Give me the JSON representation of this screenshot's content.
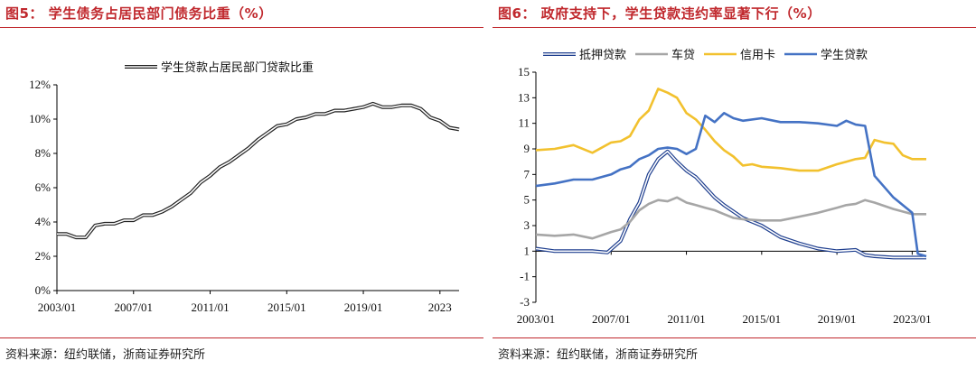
{
  "left": {
    "title": "图5： 学生债务占居民部门债务比重（%）",
    "source": "资料来源：纽约联储，浙商证券研究所"
  },
  "right": {
    "title": "图6： 政府支持下，学生贷款违约率显著下行（%）",
    "source": "资料来源：纽约联储，浙商证券研究所"
  },
  "chart_data": [
    {
      "type": "line",
      "title": "",
      "xlabel": "",
      "ylabel": "",
      "x_tick_labels": [
        "2003/01",
        "2007/01",
        "2011/01",
        "2015/01",
        "2019/01",
        "2023"
      ],
      "x_range": [
        2003.0,
        2024.0
      ],
      "ylim": [
        0,
        12
      ],
      "y_tick_labels": [
        "0%",
        "2%",
        "4%",
        "6%",
        "8%",
        "10%",
        "12%"
      ],
      "y_ticks": [
        0,
        2,
        4,
        6,
        8,
        10,
        12
      ],
      "legend_position": "top-center",
      "grid": false,
      "series": [
        {
          "name": "学生贷款占居民部门贷款比重",
          "color": "#222222",
          "style": "double",
          "x": [
            2003.0,
            2003.5,
            2004.0,
            2004.5,
            2005.0,
            2005.5,
            2006.0,
            2006.5,
            2007.0,
            2007.5,
            2008.0,
            2008.5,
            2009.0,
            2009.5,
            2010.0,
            2010.5,
            2011.0,
            2011.5,
            2012.0,
            2012.5,
            2013.0,
            2013.5,
            2014.0,
            2014.5,
            2015.0,
            2015.5,
            2016.0,
            2016.5,
            2017.0,
            2017.5,
            2018.0,
            2018.5,
            2019.0,
            2019.5,
            2020.0,
            2020.5,
            2021.0,
            2021.5,
            2022.0,
            2022.5,
            2023.0,
            2023.5,
            2024.0
          ],
          "y": [
            3.3,
            3.3,
            3.1,
            3.1,
            3.8,
            3.9,
            3.9,
            4.1,
            4.1,
            4.4,
            4.4,
            4.6,
            4.9,
            5.3,
            5.7,
            6.3,
            6.7,
            7.2,
            7.5,
            7.9,
            8.3,
            8.8,
            9.2,
            9.6,
            9.7,
            10.0,
            10.1,
            10.3,
            10.3,
            10.5,
            10.5,
            10.6,
            10.7,
            10.9,
            10.7,
            10.7,
            10.8,
            10.8,
            10.6,
            10.1,
            9.9,
            9.5,
            9.4
          ]
        }
      ]
    },
    {
      "type": "line",
      "title": "",
      "xlabel": "",
      "ylabel": "",
      "x_tick_labels": [
        "2003/01",
        "2007/01",
        "2011/01",
        "2015/01",
        "2019/01",
        "2023/01"
      ],
      "x_range": [
        2003.0,
        2023.75
      ],
      "ylim": [
        -3,
        15
      ],
      "y_ticks": [
        -3,
        -1,
        1,
        3,
        5,
        7,
        9,
        11,
        13,
        15
      ],
      "y_tick_labels": [
        "-3",
        "-1",
        "1",
        "3",
        "5",
        "7",
        "9",
        "11",
        "13",
        "15"
      ],
      "legend_position": "top",
      "grid": false,
      "series": [
        {
          "name": "抵押贷款",
          "color": "#1f3f8f",
          "style": "double",
          "x": [
            2003.0,
            2004.0,
            2005.0,
            2006.0,
            2006.8,
            2007.5,
            2008.0,
            2008.5,
            2009.0,
            2009.5,
            2010.0,
            2010.5,
            2011.0,
            2011.5,
            2012.0,
            2012.5,
            2013.0,
            2014.0,
            2015.0,
            2016.0,
            2017.0,
            2018.0,
            2019.0,
            2020.0,
            2020.5,
            2021.0,
            2022.0,
            2023.0,
            2023.75
          ],
          "y": [
            1.2,
            1.0,
            1.0,
            1.0,
            0.9,
            1.8,
            3.5,
            4.8,
            7.0,
            8.2,
            8.8,
            8.0,
            7.3,
            6.8,
            6.0,
            5.2,
            4.6,
            3.6,
            3.0,
            2.1,
            1.6,
            1.2,
            1.0,
            1.1,
            0.7,
            0.6,
            0.5,
            0.5,
            0.5
          ]
        },
        {
          "name": "车贷",
          "color": "#a6a6a6",
          "style": "solid",
          "x": [
            2003.0,
            2004.0,
            2005.0,
            2006.0,
            2007.0,
            2007.5,
            2008.0,
            2008.5,
            2009.0,
            2009.5,
            2010.0,
            2010.5,
            2011.0,
            2011.5,
            2012.0,
            2012.5,
            2013.0,
            2013.5,
            2014.0,
            2015.0,
            2016.0,
            2017.0,
            2018.0,
            2019.0,
            2019.5,
            2020.0,
            2020.5,
            2021.0,
            2022.0,
            2023.0,
            2023.75
          ],
          "y": [
            2.3,
            2.2,
            2.3,
            2.0,
            2.5,
            2.7,
            3.3,
            4.2,
            4.7,
            5.0,
            4.9,
            5.2,
            4.8,
            4.6,
            4.4,
            4.2,
            3.9,
            3.6,
            3.5,
            3.4,
            3.4,
            3.7,
            4.0,
            4.4,
            4.6,
            4.7,
            5.0,
            4.8,
            4.3,
            3.9,
            3.9
          ]
        },
        {
          "name": "信用卡",
          "color": "#f2c12e",
          "style": "solid",
          "x": [
            2003.0,
            2004.0,
            2005.0,
            2006.0,
            2007.0,
            2007.5,
            2008.0,
            2008.5,
            2009.0,
            2009.5,
            2010.0,
            2010.5,
            2011.0,
            2011.5,
            2012.0,
            2012.5,
            2013.0,
            2013.5,
            2014.0,
            2014.5,
            2015.0,
            2016.0,
            2017.0,
            2018.0,
            2019.0,
            2019.5,
            2020.0,
            2020.5,
            2021.0,
            2021.5,
            2022.0,
            2022.5,
            2023.0,
            2023.75
          ],
          "y": [
            8.9,
            9.0,
            9.3,
            8.7,
            9.5,
            9.6,
            10.0,
            11.3,
            12.0,
            13.7,
            13.4,
            13.0,
            11.8,
            11.3,
            10.5,
            9.6,
            8.9,
            8.4,
            7.7,
            7.8,
            7.6,
            7.5,
            7.3,
            7.3,
            7.8,
            8.0,
            8.2,
            8.3,
            9.7,
            9.5,
            9.4,
            8.5,
            8.2,
            8.2
          ]
        },
        {
          "name": "学生贷款",
          "color": "#4472c4",
          "style": "solid",
          "x": [
            2003.0,
            2004.0,
            2005.0,
            2006.0,
            2007.0,
            2007.5,
            2008.0,
            2008.5,
            2009.0,
            2009.5,
            2010.0,
            2010.5,
            2011.0,
            2011.5,
            2012.0,
            2012.5,
            2013.0,
            2013.5,
            2014.0,
            2015.0,
            2016.0,
            2017.0,
            2018.0,
            2019.0,
            2019.5,
            2020.0,
            2020.5,
            2021.0,
            2022.0,
            2023.0,
            2023.3,
            2023.75
          ],
          "y": [
            6.1,
            6.3,
            6.6,
            6.6,
            7.0,
            7.4,
            7.6,
            8.2,
            8.5,
            9.0,
            9.1,
            9.0,
            8.6,
            9.0,
            11.6,
            11.1,
            11.8,
            11.4,
            11.2,
            11.4,
            11.1,
            11.1,
            11.0,
            10.8,
            11.2,
            10.9,
            10.8,
            6.9,
            5.2,
            4.0,
            0.8,
            0.6
          ]
        }
      ]
    }
  ]
}
